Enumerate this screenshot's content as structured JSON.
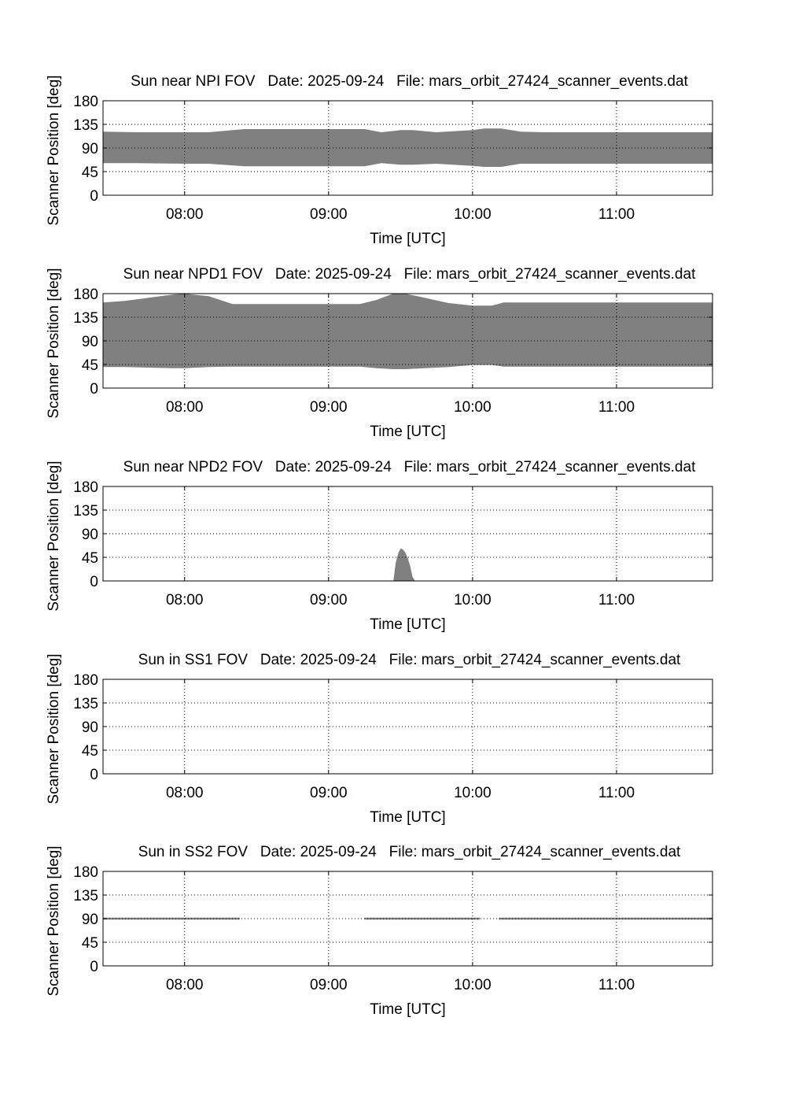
{
  "page": {
    "background": "#ffffff",
    "fill_color": "#808080",
    "grid_color": "#000000"
  },
  "chart_data": [
    {
      "type": "area",
      "title": "Sun near NPI FOV   Date: 2025-09-24   File: mars_orbit_27424_scanner_events.dat",
      "xlabel": "Time [UTC]",
      "ylabel": "Scanner Position [deg]",
      "xlim": [
        "07:26",
        "11:40"
      ],
      "ylim": [
        0,
        180
      ],
      "xticks": [
        "08:00",
        "09:00",
        "10:00",
        "11:00"
      ],
      "yticks": [
        0,
        45,
        90,
        135,
        180
      ],
      "grid": true,
      "series": [
        {
          "x": [
            "07:26",
            "07:40",
            "08:00",
            "08:10",
            "08:25",
            "08:40",
            "09:00",
            "09:15",
            "09:22",
            "09:30",
            "09:35",
            "09:45",
            "10:00",
            "10:05",
            "10:12",
            "10:20",
            "10:30",
            "11:00",
            "11:40"
          ],
          "upper": [
            121,
            120,
            120,
            120,
            126,
            126,
            126,
            126,
            120,
            124,
            124,
            120,
            124,
            127,
            127,
            121,
            120,
            120,
            120
          ],
          "lower": [
            61,
            61,
            60,
            60,
            55,
            55,
            55,
            55,
            61,
            58,
            58,
            60,
            56,
            54,
            54,
            60,
            60,
            60,
            60
          ]
        }
      ]
    },
    {
      "type": "area",
      "title": "Sun near NPD1 FOV   Date: 2025-09-24   File: mars_orbit_27424_scanner_events.dat",
      "xlabel": "Time [UTC]",
      "ylabel": "Scanner Position [deg]",
      "xlim": [
        "07:26",
        "11:40"
      ],
      "ylim": [
        0,
        180
      ],
      "xticks": [
        "08:00",
        "09:00",
        "10:00",
        "11:00"
      ],
      "yticks": [
        0,
        45,
        90,
        135,
        180
      ],
      "grid": true,
      "series": [
        {
          "x": [
            "07:26",
            "07:35",
            "07:45",
            "07:55",
            "08:00",
            "08:10",
            "08:20",
            "09:00",
            "09:13",
            "09:20",
            "09:27",
            "09:32",
            "09:40",
            "09:50",
            "10:00",
            "10:08",
            "10:13",
            "11:40"
          ],
          "upper": [
            163,
            166,
            172,
            178,
            180,
            175,
            160,
            160,
            160,
            168,
            180,
            180,
            172,
            162,
            157,
            157,
            163,
            163
          ],
          "lower": [
            40,
            40,
            39,
            38,
            38,
            40,
            41,
            41,
            41,
            38,
            36,
            36,
            38,
            40,
            44,
            44,
            41,
            41
          ]
        }
      ]
    },
    {
      "type": "area",
      "title": "Sun near NPD2 FOV   Date: 2025-09-24   File: mars_orbit_27424_scanner_events.dat",
      "xlabel": "Time [UTC]",
      "ylabel": "Scanner Position [deg]",
      "xlim": [
        "07:26",
        "11:40"
      ],
      "ylim": [
        0,
        180
      ],
      "xticks": [
        "08:00",
        "09:00",
        "10:00",
        "11:00"
      ],
      "yticks": [
        0,
        45,
        90,
        135,
        180
      ],
      "grid": true,
      "series": [
        {
          "x": [
            "09:27",
            "09:28",
            "09:29",
            "09:30",
            "09:31",
            "09:32",
            "09:33",
            "09:34",
            "09:35",
            "09:36"
          ],
          "upper": [
            0,
            35,
            52,
            62,
            60,
            54,
            44,
            28,
            8,
            0
          ],
          "lower": [
            0,
            0,
            0,
            0,
            0,
            0,
            0,
            0,
            0,
            0
          ]
        }
      ]
    },
    {
      "type": "area",
      "title": "Sun in SS1 FOV   Date: 2025-09-24   File: mars_orbit_27424_scanner_events.dat",
      "xlabel": "Time [UTC]",
      "ylabel": "Scanner Position [deg]",
      "xlim": [
        "07:26",
        "11:40"
      ],
      "ylim": [
        0,
        180
      ],
      "xticks": [
        "08:00",
        "09:00",
        "10:00",
        "11:00"
      ],
      "yticks": [
        0,
        45,
        90,
        135,
        180
      ],
      "grid": true,
      "series": []
    },
    {
      "type": "area",
      "title": "Sun in SS2 FOV   Date: 2025-09-24   File: mars_orbit_27424_scanner_events.dat",
      "xlabel": "Time [UTC]",
      "ylabel": "Scanner Position [deg]",
      "xlim": [
        "07:26",
        "11:40"
      ],
      "ylim": [
        0,
        180
      ],
      "xticks": [
        "08:00",
        "09:00",
        "10:00",
        "11:00"
      ],
      "yticks": [
        0,
        45,
        90,
        135,
        180
      ],
      "grid": true,
      "series": [
        {
          "x": [
            "07:26",
            "08:23"
          ],
          "upper": [
            92,
            92
          ],
          "lower": [
            88,
            88
          ]
        },
        {
          "x": [
            "09:15",
            "10:03"
          ],
          "upper": [
            92,
            92
          ],
          "lower": [
            88,
            88
          ]
        },
        {
          "x": [
            "10:11",
            "11:40"
          ],
          "upper": [
            92,
            92
          ],
          "lower": [
            88,
            88
          ]
        }
      ]
    }
  ]
}
